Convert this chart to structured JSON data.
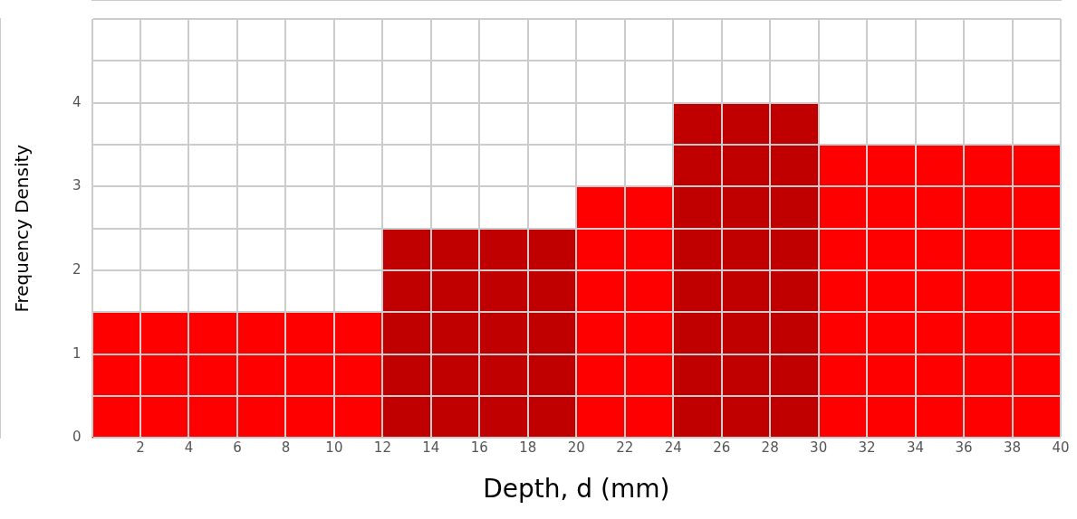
{
  "chart_data": {
    "type": "histogram",
    "xlabel": "Depth, d (mm)",
    "ylabel": "Frequency Density",
    "bins": [
      0,
      12,
      20,
      24,
      30,
      40
    ],
    "values": [
      1.5,
      2.5,
      3,
      4,
      3.5
    ],
    "colors": [
      "#ff0000",
      "#c00000",
      "#ff0000",
      "#c00000",
      "#ff0000"
    ],
    "xlim": [
      0,
      40
    ],
    "xticks": [
      {
        "value": 0,
        "label": null
      },
      2,
      4,
      6,
      8,
      10,
      12,
      14,
      16,
      18,
      20,
      22,
      24,
      26,
      28,
      30,
      32,
      34,
      36,
      38,
      40
    ],
    "ylim": [
      0,
      5
    ],
    "yticks": [
      0,
      {
        "value": 0.5,
        "label": null
      },
      1,
      {
        "value": 1.5,
        "label": null
      },
      2,
      {
        "value": 2.5,
        "label": null
      },
      3,
      {
        "value": 3.5,
        "label": null
      },
      4,
      {
        "value": 4.5,
        "label": null
      },
      {
        "value": 5,
        "label": null
      }
    ],
    "grid": true
  }
}
